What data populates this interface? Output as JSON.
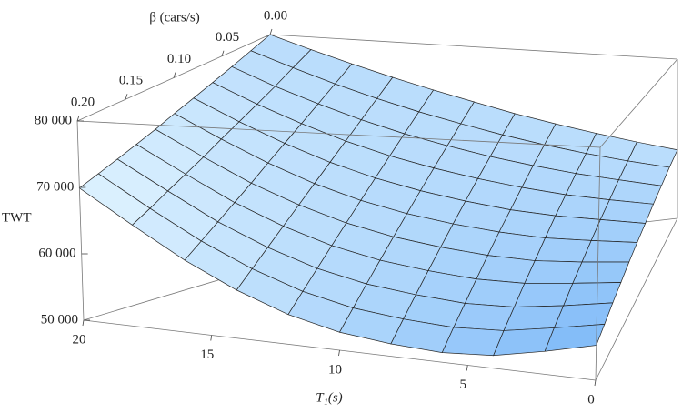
{
  "chart_data": {
    "type": "surface3d",
    "x_label": "T₁(s)",
    "y_label": "β (cars/s)",
    "z_label": "TWT",
    "xlim": [
      0,
      20
    ],
    "ylim": [
      0,
      0.2
    ],
    "zlim": [
      50000,
      80000
    ],
    "xticks": [
      0,
      5,
      10,
      15,
      20
    ],
    "yticks": [
      {
        "value": 0,
        "label": "0.00"
      },
      0.05,
      {
        "value": 0.1,
        "label": "0.10"
      },
      0.15,
      {
        "value": 0.2,
        "label": "0.20"
      }
    ],
    "zticks": [
      {
        "value": 50000,
        "label": "50 000"
      },
      {
        "value": 60000,
        "label": "60 000"
      },
      {
        "value": 70000,
        "label": "70 000"
      },
      {
        "value": 80000,
        "label": "80 000"
      }
    ],
    "x": [
      0,
      2,
      4,
      6,
      8,
      10,
      12,
      14,
      16,
      18,
      20
    ],
    "y": [
      0,
      0.02,
      0.04,
      0.06,
      0.08,
      0.1,
      0.12,
      0.14,
      0.16,
      0.18,
      0.2
    ],
    "z": [
      [
        62900,
        64600,
        66300,
        68000,
        69700,
        71500,
        73200,
        74900,
        76600,
        78300,
        80000
      ],
      [
        62100,
        63400,
        64800,
        66300,
        67900,
        69600,
        71300,
        73100,
        75000,
        77000,
        79000
      ],
      [
        61200,
        62300,
        63400,
        64700,
        66100,
        67700,
        69400,
        71300,
        73400,
        75600,
        78000
      ],
      [
        60400,
        61100,
        61900,
        63000,
        64300,
        65800,
        67500,
        69500,
        71800,
        74300,
        77000
      ],
      [
        59500,
        60000,
        60500,
        61300,
        62500,
        63900,
        65600,
        67700,
        70200,
        73000,
        76000
      ],
      [
        58700,
        58800,
        59000,
        59700,
        60700,
        62000,
        63700,
        65900,
        68600,
        71700,
        75000
      ],
      [
        57900,
        57600,
        57500,
        58000,
        58900,
        60100,
        61800,
        64100,
        66900,
        70300,
        73900
      ],
      [
        57000,
        56500,
        56100,
        56300,
        57100,
        58200,
        59900,
        62300,
        65300,
        69000,
        72900
      ],
      [
        56200,
        55300,
        54600,
        54600,
        55300,
        56300,
        58000,
        60500,
        63700,
        67700,
        71900
      ],
      [
        55300,
        54200,
        53200,
        53000,
        53500,
        54400,
        56100,
        58700,
        62100,
        66300,
        70900
      ],
      [
        54500,
        53000,
        51700,
        51300,
        51700,
        52500,
        54200,
        56900,
        60500,
        65000,
        69900
      ]
    ]
  }
}
